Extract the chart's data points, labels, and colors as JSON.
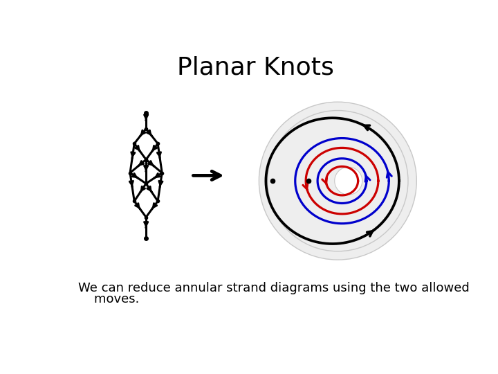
{
  "title": "Planar Knots",
  "title_fontsize": 26,
  "subtitle_line1": "We can reduce annular strand diagrams using the two allowed",
  "subtitle_line2": "    moves.",
  "subtitle_fontsize": 13,
  "bg_color": "#ffffff",
  "text_color": "#000000",
  "blue_color": "#0000cc",
  "red_color": "#cc0000",
  "gray_color": "#c8c8c8",
  "gray_fill": "#eeeeee",
  "lw_black": 2.2,
  "lw_colored": 2.0,
  "lw_gray": 1.0
}
